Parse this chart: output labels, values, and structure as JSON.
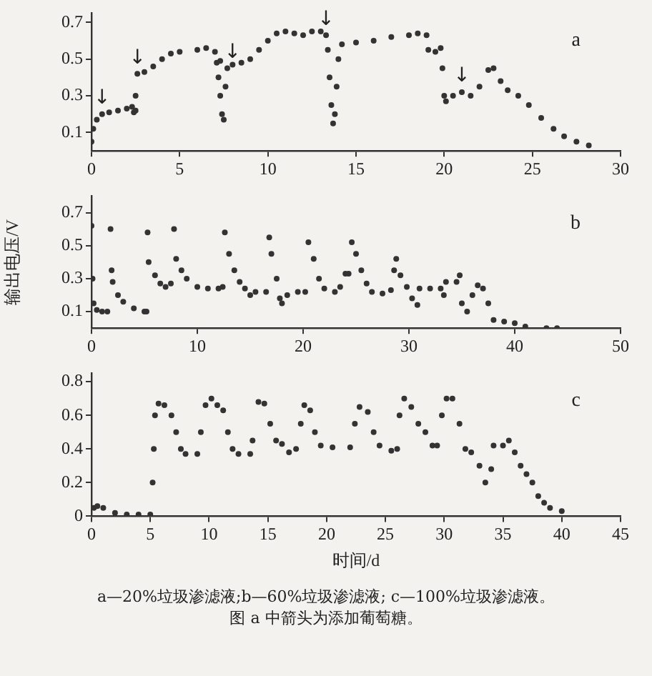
{
  "chart_data": [
    {
      "type": "scatter",
      "marker": "circle",
      "grid": false,
      "legend": false,
      "xlim": [
        0,
        30
      ],
      "xticks": [
        0,
        5,
        10,
        15,
        20,
        25,
        30
      ],
      "ylim": [
        0,
        0.75
      ],
      "yticks": [
        0.1,
        0.3,
        0.5,
        0.7
      ],
      "annotations": [
        "a",
        {
          "text": "↓",
          "x": 0.6,
          "y": 0.2
        },
        {
          "text": "↓",
          "x": 2.6,
          "y": 0.42
        },
        {
          "text": "↓",
          "x": 8,
          "y": 0.45
        },
        {
          "text": "↓",
          "x": 13.3,
          "y": 0.63
        },
        {
          "text": "↓",
          "x": 21,
          "y": 0.32
        }
      ],
      "series": [
        {
          "color": "#333333",
          "x": [
            0,
            0.1,
            0.3,
            0.6,
            1,
            1.5,
            2,
            2.3,
            2.4,
            2.5,
            2.5,
            2.6,
            3,
            3.5,
            4,
            4.5,
            5,
            6,
            6.5,
            7,
            7.1,
            7.3,
            7.2,
            7.3,
            7.4,
            7.5,
            7.6,
            7.7,
            8,
            8.5,
            9,
            9.5,
            10,
            10.5,
            11,
            11.5,
            12,
            12.5,
            13,
            13.3,
            13.4,
            13.5,
            13.6,
            13.7,
            13.8,
            13.9,
            14,
            14.2,
            15,
            16,
            17,
            18,
            18.5,
            19,
            19.1,
            19.5,
            19.8,
            19.9,
            20,
            20.1,
            20.5,
            21,
            21.5,
            22,
            22.5,
            22.8,
            23.2,
            23.6,
            24.2,
            24.8,
            25.5,
            26.2,
            26.8,
            27.5,
            28.2
          ],
          "values": [
            0.05,
            0.12,
            0.17,
            0.2,
            0.21,
            0.22,
            0.23,
            0.24,
            0.21,
            0.22,
            0.3,
            0.42,
            0.43,
            0.46,
            0.5,
            0.53,
            0.54,
            0.55,
            0.56,
            0.54,
            0.48,
            0.49,
            0.4,
            0.3,
            0.2,
            0.17,
            0.35,
            0.45,
            0.47,
            0.48,
            0.5,
            0.55,
            0.6,
            0.64,
            0.65,
            0.64,
            0.63,
            0.65,
            0.65,
            0.63,
            0.55,
            0.4,
            0.25,
            0.15,
            0.2,
            0.35,
            0.5,
            0.58,
            0.59,
            0.6,
            0.62,
            0.63,
            0.64,
            0.63,
            0.55,
            0.54,
            0.56,
            0.45,
            0.3,
            0.27,
            0.3,
            0.32,
            0.3,
            0.35,
            0.44,
            0.45,
            0.38,
            0.33,
            0.3,
            0.25,
            0.18,
            0.12,
            0.08,
            0.05,
            0.03
          ]
        }
      ]
    },
    {
      "type": "scatter",
      "marker": "circle",
      "grid": false,
      "legend": false,
      "ylabel": "输出电压/V",
      "xlim": [
        0,
        50
      ],
      "xticks": [
        0,
        10,
        20,
        30,
        40,
        50
      ],
      "ylim": [
        0,
        0.8
      ],
      "yticks": [
        0.1,
        0.3,
        0.5,
        0.7
      ],
      "annotations": [
        "b"
      ],
      "series": [
        {
          "color": "#333333",
          "x": [
            0,
            0.1,
            0.2,
            0.5,
            1,
            1.5,
            1.8,
            1.9,
            2,
            2.5,
            3,
            4,
            5,
            5.2,
            5.3,
            5.4,
            6,
            6.5,
            7,
            7.5,
            7.8,
            8,
            8.5,
            9,
            10,
            11,
            12,
            12.4,
            12.6,
            13,
            13.5,
            14,
            14.5,
            15,
            15.5,
            16.5,
            16.8,
            17,
            17.5,
            17.8,
            18,
            18.5,
            19.5,
            20.2,
            20.5,
            21,
            21.5,
            22,
            23,
            23.5,
            24,
            24.3,
            24.6,
            25,
            25.5,
            26,
            26.5,
            27.5,
            28.3,
            28.6,
            28.8,
            29.2,
            29.8,
            30.3,
            30.8,
            31,
            32,
            33,
            33.3,
            33.5,
            34.5,
            34.8,
            35,
            35.5,
            36,
            36.5,
            37,
            37.5,
            38,
            39,
            40,
            41,
            43,
            44
          ],
          "values": [
            0.62,
            0.3,
            0.15,
            0.11,
            0.1,
            0.1,
            0.6,
            0.35,
            0.28,
            0.2,
            0.16,
            0.12,
            0.1,
            0.1,
            0.58,
            0.4,
            0.32,
            0.27,
            0.25,
            0.27,
            0.6,
            0.42,
            0.35,
            0.3,
            0.25,
            0.24,
            0.24,
            0.25,
            0.58,
            0.45,
            0.35,
            0.28,
            0.24,
            0.2,
            0.22,
            0.22,
            0.55,
            0.45,
            0.3,
            0.18,
            0.15,
            0.2,
            0.22,
            0.22,
            0.52,
            0.42,
            0.3,
            0.24,
            0.22,
            0.25,
            0.33,
            0.33,
            0.52,
            0.45,
            0.35,
            0.27,
            0.22,
            0.21,
            0.23,
            0.35,
            0.42,
            0.32,
            0.25,
            0.18,
            0.14,
            0.24,
            0.24,
            0.24,
            0.2,
            0.28,
            0.28,
            0.32,
            0.15,
            0.1,
            0.2,
            0.26,
            0.24,
            0.15,
            0.05,
            0.04,
            0.03,
            0.01,
            0,
            0
          ]
        }
      ]
    },
    {
      "type": "scatter",
      "marker": "circle",
      "grid": false,
      "legend": false,
      "xlabel": "时间/d",
      "xlim": [
        0,
        45
      ],
      "xticks": [
        0,
        5,
        10,
        15,
        20,
        25,
        30,
        35,
        40,
        45
      ],
      "ylim": [
        0,
        0.85
      ],
      "yticks": [
        0,
        0.2,
        0.4,
        0.6,
        0.8
      ],
      "annotations": [
        "c",
        "a—20%垃圾渗滤液;b—60%垃圾渗滤液; c—100%垃圾渗滤液。",
        "图 a 中箭头为添加葡萄糖。"
      ],
      "series": [
        {
          "color": "#333333",
          "x": [
            0.2,
            0.5,
            1,
            2,
            3,
            4,
            5,
            5.2,
            5.3,
            5.4,
            5.7,
            6.2,
            6.8,
            7.2,
            7.6,
            8,
            9,
            9.3,
            9.7,
            10.2,
            10.7,
            11.2,
            11.6,
            12,
            12.5,
            13.5,
            13.7,
            14.2,
            14.7,
            15.2,
            15.7,
            16.2,
            16.8,
            17.4,
            17.8,
            18.1,
            18.6,
            19,
            19.5,
            20.5,
            22,
            22.4,
            22.8,
            23.5,
            24,
            24.5,
            25.5,
            26,
            26.2,
            26.6,
            27.2,
            27.8,
            28.4,
            29,
            29.4,
            29.8,
            30.2,
            30.7,
            31.3,
            31.8,
            32.3,
            33,
            33.5,
            34,
            34.2,
            35,
            35.5,
            36,
            36.5,
            37,
            37.5,
            38,
            38.5,
            39,
            40
          ],
          "values": [
            0.05,
            0.06,
            0.05,
            0.02,
            0.01,
            0.01,
            0.01,
            0.2,
            0.4,
            0.6,
            0.67,
            0.66,
            0.6,
            0.5,
            0.4,
            0.37,
            0.37,
            0.5,
            0.66,
            0.7,
            0.66,
            0.63,
            0.5,
            0.4,
            0.37,
            0.37,
            0.45,
            0.68,
            0.67,
            0.55,
            0.45,
            0.43,
            0.38,
            0.4,
            0.55,
            0.66,
            0.63,
            0.5,
            0.42,
            0.41,
            0.41,
            0.55,
            0.65,
            0.62,
            0.5,
            0.42,
            0.39,
            0.4,
            0.6,
            0.7,
            0.65,
            0.55,
            0.5,
            0.42,
            0.42,
            0.6,
            0.7,
            0.7,
            0.55,
            0.4,
            0.38,
            0.3,
            0.2,
            0.28,
            0.42,
            0.42,
            0.45,
            0.38,
            0.3,
            0.25,
            0.2,
            0.12,
            0.08,
            0.05,
            0.03
          ]
        }
      ]
    }
  ]
}
